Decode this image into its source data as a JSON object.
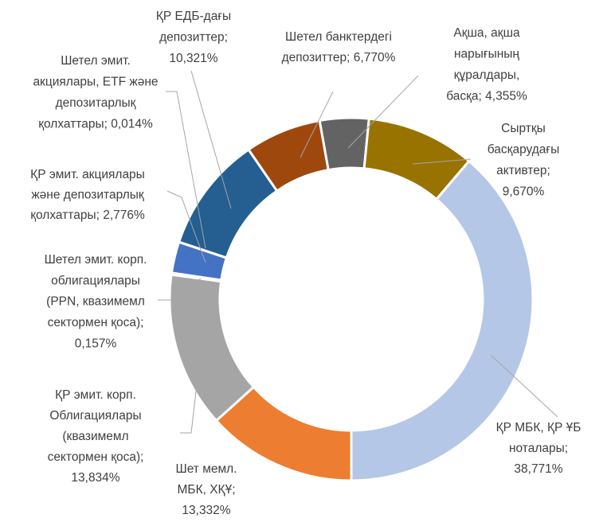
{
  "chart_data": {
    "type": "donut",
    "categories": [
      "Ақша, ақша\nнарығының\nқұралдары,\nбасқа;",
      "Сыртқы\nбасқарудағы\nактивтер;",
      "ҚР МБК, ҚР ҰБ\nноталары;",
      "Шет мемл.\nМБК, ХҚҰ;",
      "ҚР эмит. корп.\nОблигациялары\n(квазимемл\nсектормен  қоса);",
      "Шетел эмит. корп.\nоблигациялары\n(PPN, квазимемл\nсектормен  қоса);",
      "ҚР эмит. акциялары\nжәне депозитарлық\nқолхаттары;",
      "Шетел эмит.\nакциялары, ETF және\nдепозитарлық\nқолхаттары;",
      "ҚР ЕДБ-дағы\nдепозиттер;",
      "Шетел банктердегі\nдепозиттер;"
    ],
    "values": [
      4.355,
      9.67,
      38.771,
      13.332,
      13.834,
      0.157,
      2.776,
      0.014,
      10.321,
      6.77
    ],
    "value_labels": [
      "4,355%",
      "9,670%",
      "38,771%",
      "13,332%",
      "13,834%",
      "0,157%",
      "2,776%",
      "0,014%",
      "10,321%",
      "6,770%"
    ],
    "colors": [
      "#636363",
      "#997300",
      "#b4c7e7",
      "#ed7d31",
      "#a5a5a5",
      "#264478",
      "#4472c4",
      "#698ed0",
      "#255e91",
      "#9e480e"
    ]
  }
}
